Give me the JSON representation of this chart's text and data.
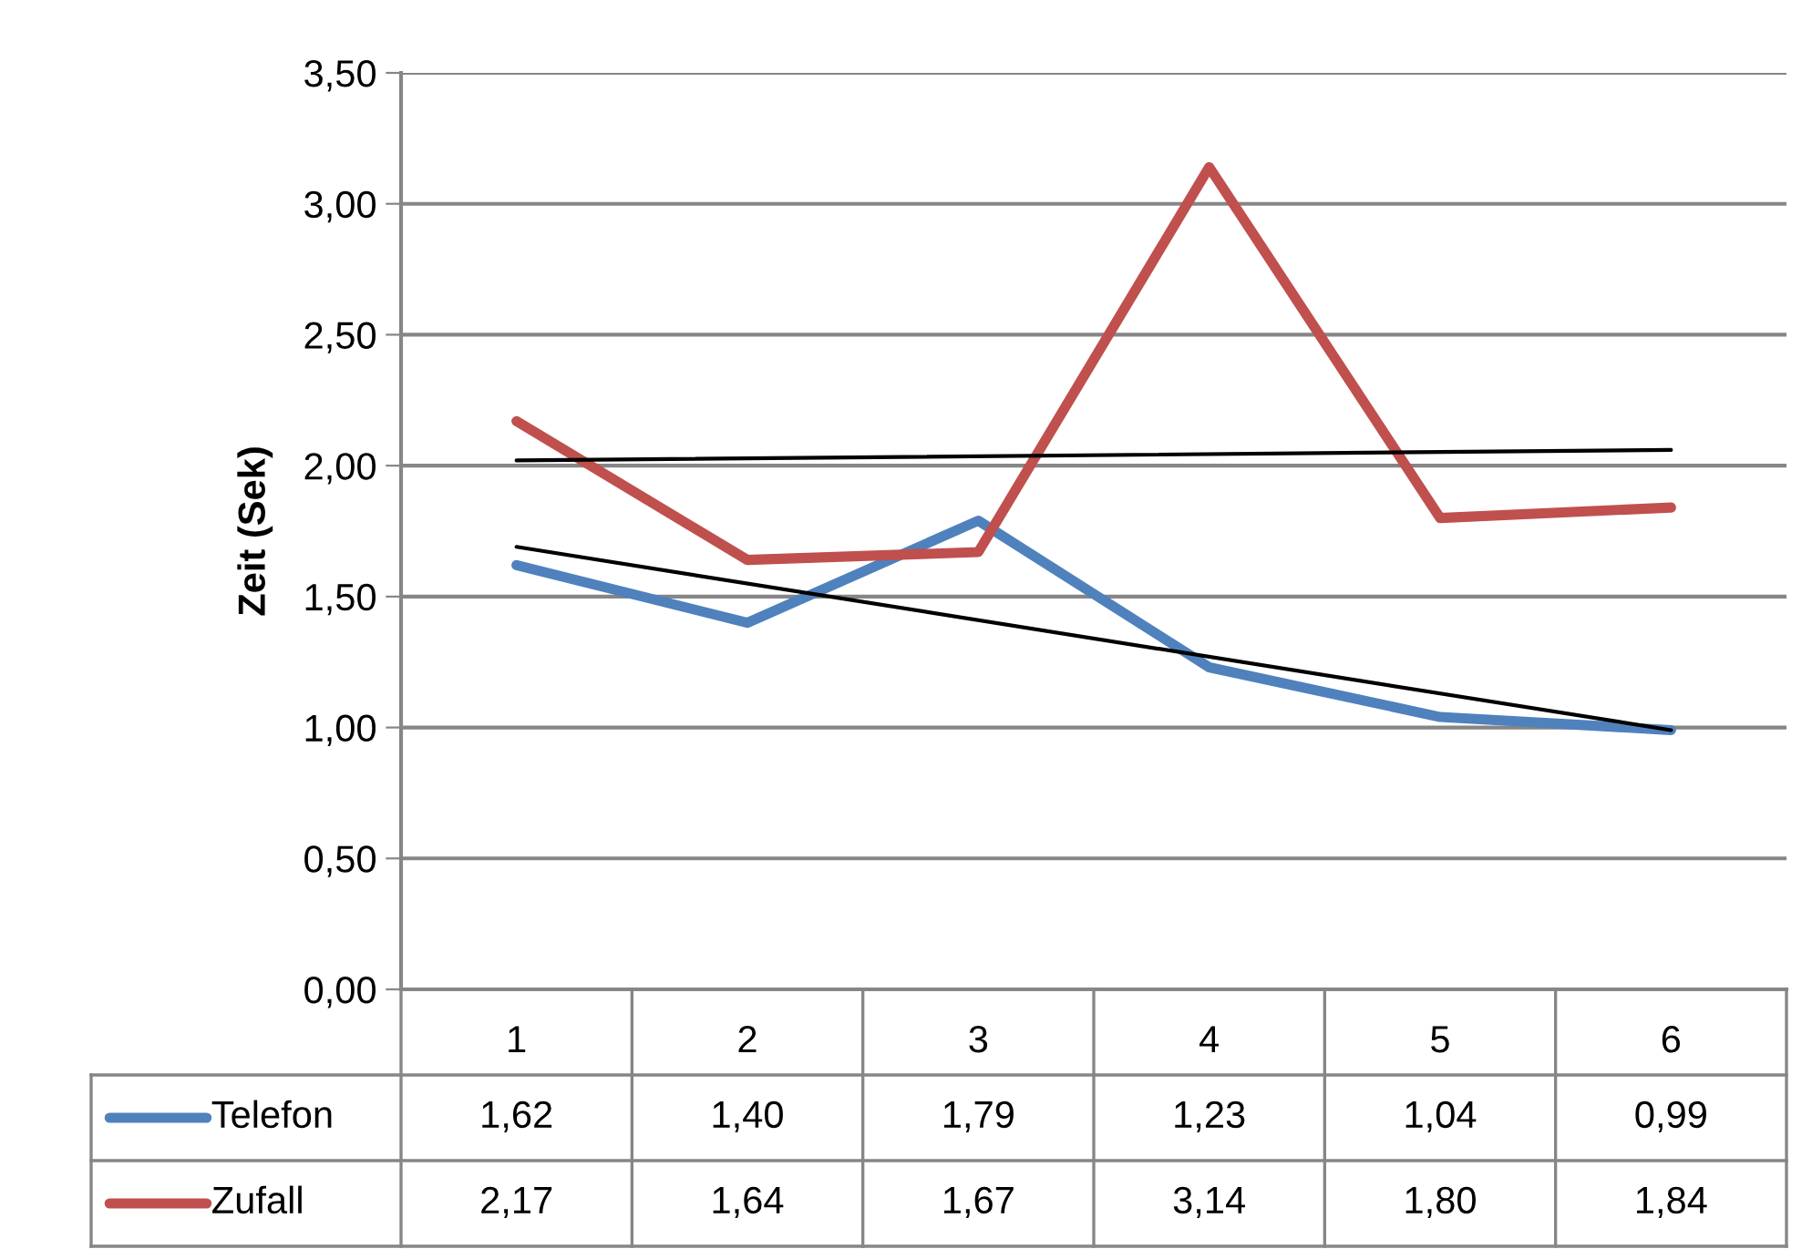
{
  "chart_data": {
    "type": "line",
    "ylabel": "Zeit (Sek)",
    "categories": [
      "1",
      "2",
      "3",
      "4",
      "5",
      "6"
    ],
    "series": [
      {
        "name": "Telefon",
        "color": "#4f81bd",
        "values": [
          1.62,
          1.4,
          1.79,
          1.23,
          1.04,
          0.99
        ],
        "value_labels": [
          "1,62",
          "1,40",
          "1,79",
          "1,23",
          "1,04",
          "0,99"
        ]
      },
      {
        "name": "Zufall",
        "color": "#c0504d",
        "values": [
          2.17,
          1.64,
          1.67,
          3.14,
          1.8,
          1.84
        ],
        "value_labels": [
          "2,17",
          "1,64",
          "1,67",
          "3,14",
          "1,80",
          "1,84"
        ]
      },
      {
        "type": "line",
        "color": "#000000",
        "x": [
          "1",
          "6"
        ],
        "values": [
          1.69,
          0.99
        ]
      },
      {
        "type": "line",
        "color": "#000000",
        "x": [
          "1",
          "6"
        ],
        "values": [
          2.02,
          2.06
        ]
      }
    ],
    "ylim": [
      0,
      3.5
    ],
    "yticks": [
      {
        "value": 0,
        "label": "0,00"
      },
      {
        "value": 0.5,
        "label": "0,50"
      },
      {
        "value": 1,
        "label": "1,00"
      },
      {
        "value": 1.5,
        "label": "1,50"
      },
      {
        "value": 2,
        "label": "2,00"
      },
      {
        "value": 2.5,
        "label": "2,50"
      },
      {
        "value": 3,
        "label": "3,00"
      },
      {
        "value": 3.5,
        "label": "3,50"
      }
    ],
    "grid": "y",
    "legend": "bottom left",
    "marker": "none",
    "line_style": "solid"
  }
}
